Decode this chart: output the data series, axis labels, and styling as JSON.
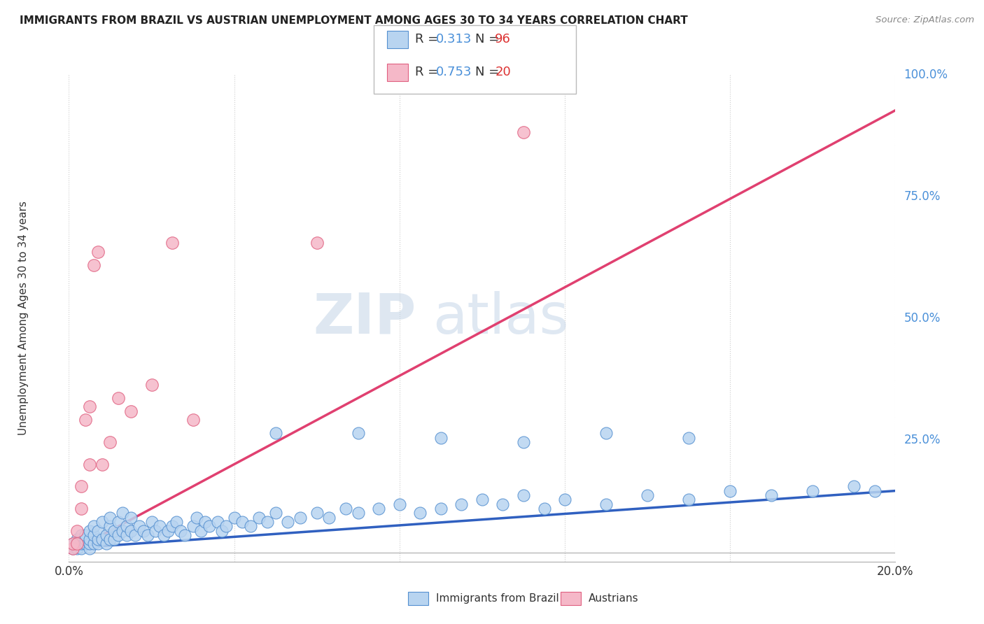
{
  "title": "IMMIGRANTS FROM BRAZIL VS AUSTRIAN UNEMPLOYMENT AMONG AGES 30 TO 34 YEARS CORRELATION CHART",
  "source": "Source: ZipAtlas.com",
  "ylabel": "Unemployment Among Ages 30 to 34 years",
  "ytick_labels": [
    "100.0%",
    "75.0%",
    "50.0%",
    "25.0%",
    ""
  ],
  "ytick_values": [
    1.0,
    0.75,
    0.5,
    0.25,
    0.0
  ],
  "xlim": [
    0.0,
    0.2
  ],
  "ylim": [
    -0.02,
    1.08
  ],
  "color_brazil": "#b8d4f0",
  "color_austria": "#f5b8c8",
  "color_brazil_edge": "#5590d0",
  "color_austria_edge": "#e06080",
  "color_brazil_line": "#3060c0",
  "color_austria_line": "#e04070",
  "color_r_value": "#4a90d9",
  "color_n_value": "#dd3333",
  "watermark_zip": "ZIP",
  "watermark_atlas": "atlas",
  "brazil_scatter_x": [
    0.001,
    0.001,
    0.002,
    0.002,
    0.002,
    0.003,
    0.003,
    0.003,
    0.003,
    0.004,
    0.004,
    0.004,
    0.005,
    0.005,
    0.005,
    0.005,
    0.006,
    0.006,
    0.006,
    0.007,
    0.007,
    0.007,
    0.008,
    0.008,
    0.009,
    0.009,
    0.01,
    0.01,
    0.01,
    0.011,
    0.011,
    0.012,
    0.012,
    0.013,
    0.013,
    0.014,
    0.014,
    0.015,
    0.015,
    0.016,
    0.017,
    0.018,
    0.019,
    0.02,
    0.021,
    0.022,
    0.023,
    0.024,
    0.025,
    0.026,
    0.027,
    0.028,
    0.03,
    0.031,
    0.032,
    0.033,
    0.034,
    0.036,
    0.037,
    0.038,
    0.04,
    0.042,
    0.044,
    0.046,
    0.048,
    0.05,
    0.053,
    0.056,
    0.06,
    0.063,
    0.067,
    0.07,
    0.075,
    0.08,
    0.085,
    0.09,
    0.095,
    0.1,
    0.105,
    0.11,
    0.115,
    0.12,
    0.13,
    0.14,
    0.15,
    0.16,
    0.17,
    0.18,
    0.19,
    0.195,
    0.05,
    0.07,
    0.09,
    0.11,
    0.13,
    0.15
  ],
  "brazil_scatter_y": [
    0.01,
    0.02,
    0.01,
    0.03,
    0.02,
    0.01,
    0.02,
    0.03,
    0.04,
    0.02,
    0.03,
    0.04,
    0.01,
    0.02,
    0.03,
    0.05,
    0.02,
    0.04,
    0.06,
    0.02,
    0.03,
    0.05,
    0.03,
    0.07,
    0.02,
    0.04,
    0.03,
    0.06,
    0.08,
    0.03,
    0.05,
    0.04,
    0.07,
    0.05,
    0.09,
    0.04,
    0.06,
    0.05,
    0.08,
    0.04,
    0.06,
    0.05,
    0.04,
    0.07,
    0.05,
    0.06,
    0.04,
    0.05,
    0.06,
    0.07,
    0.05,
    0.04,
    0.06,
    0.08,
    0.05,
    0.07,
    0.06,
    0.07,
    0.05,
    0.06,
    0.08,
    0.07,
    0.06,
    0.08,
    0.07,
    0.09,
    0.07,
    0.08,
    0.09,
    0.08,
    0.1,
    0.09,
    0.1,
    0.11,
    0.09,
    0.1,
    0.11,
    0.12,
    0.11,
    0.13,
    0.1,
    0.12,
    0.11,
    0.13,
    0.12,
    0.14,
    0.13,
    0.14,
    0.15,
    0.14,
    0.27,
    0.27,
    0.26,
    0.25,
    0.27,
    0.26
  ],
  "austria_scatter_x": [
    0.001,
    0.001,
    0.002,
    0.002,
    0.003,
    0.003,
    0.004,
    0.005,
    0.005,
    0.006,
    0.007,
    0.008,
    0.01,
    0.012,
    0.015,
    0.02,
    0.025,
    0.03,
    0.06,
    0.11
  ],
  "austria_scatter_y": [
    0.01,
    0.02,
    0.02,
    0.05,
    0.1,
    0.15,
    0.3,
    0.33,
    0.2,
    0.65,
    0.68,
    0.2,
    0.25,
    0.35,
    0.32,
    0.38,
    0.7,
    0.3,
    0.7,
    0.95
  ],
  "brazil_trend_x": [
    0.0,
    0.2
  ],
  "brazil_trend_y": [
    0.01,
    0.14
  ],
  "austria_trend_x": [
    0.0,
    0.2
  ],
  "austria_trend_y": [
    0.0,
    1.0
  ]
}
